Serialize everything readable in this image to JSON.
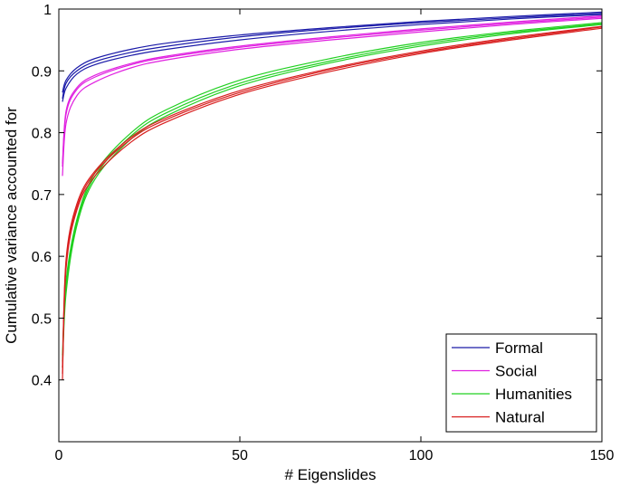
{
  "chart_data": {
    "type": "line",
    "xlabel": "# Eigenslides",
    "ylabel": "Cumulative variance accounted for",
    "xlim": [
      0,
      150
    ],
    "ylim": [
      0.3,
      1.0
    ],
    "xticks": [
      0,
      50,
      100,
      150
    ],
    "xtick_labels": [
      "0",
      "50",
      "100",
      "150"
    ],
    "yticks": [
      0.4,
      0.5,
      0.6,
      0.7,
      0.8,
      0.9,
      1.0
    ],
    "ytick_labels": [
      "0.4",
      "0.5",
      "0.6",
      "0.7",
      "0.8",
      "0.9",
      "1"
    ],
    "grid": false,
    "legend_position": "bottom-right",
    "x": [
      1,
      2,
      5,
      10,
      20,
      30,
      50,
      75,
      100,
      125,
      150
    ],
    "series": [
      {
        "name": "Formal",
        "color": "#1a1aa8",
        "values": [
          0.855,
          0.88,
          0.9,
          0.915,
          0.93,
          0.94,
          0.955,
          0.968,
          0.978,
          0.986,
          0.993
        ]
      },
      {
        "name": "",
        "color": "#1a1aa8",
        "values": [
          0.865,
          0.885,
          0.905,
          0.92,
          0.935,
          0.945,
          0.958,
          0.97,
          0.98,
          0.988,
          0.995
        ]
      },
      {
        "name": "",
        "color": "#1a1aa8",
        "values": [
          0.85,
          0.872,
          0.895,
          0.91,
          0.925,
          0.935,
          0.95,
          0.964,
          0.975,
          0.984,
          0.991
        ]
      },
      {
        "name": "Social",
        "color": "#e020e0",
        "values": [
          0.745,
          0.83,
          0.87,
          0.89,
          0.91,
          0.922,
          0.938,
          0.953,
          0.966,
          0.977,
          0.987
        ]
      },
      {
        "name": "",
        "color": "#e020e0",
        "values": [
          0.73,
          0.815,
          0.86,
          0.882,
          0.905,
          0.918,
          0.935,
          0.95,
          0.963,
          0.975,
          0.985
        ]
      },
      {
        "name": "",
        "color": "#e020e0",
        "values": [
          0.75,
          0.835,
          0.873,
          0.893,
          0.912,
          0.924,
          0.94,
          0.955,
          0.968,
          0.979,
          0.989
        ]
      },
      {
        "name": "Humanities",
        "color": "#20d020",
        "values": [
          0.44,
          0.56,
          0.66,
          0.735,
          0.8,
          0.838,
          0.885,
          0.92,
          0.946,
          0.964,
          0.978
        ]
      },
      {
        "name": "",
        "color": "#20d020",
        "values": [
          0.42,
          0.54,
          0.65,
          0.725,
          0.79,
          0.828,
          0.876,
          0.913,
          0.94,
          0.96,
          0.975
        ]
      },
      {
        "name": "",
        "color": "#20d020",
        "values": [
          0.43,
          0.55,
          0.655,
          0.73,
          0.795,
          0.833,
          0.88,
          0.916,
          0.943,
          0.962,
          0.976
        ]
      },
      {
        "name": "Natural",
        "color": "#d81e1e",
        "values": [
          0.41,
          0.59,
          0.68,
          0.735,
          0.79,
          0.822,
          0.865,
          0.902,
          0.93,
          0.952,
          0.971
        ]
      },
      {
        "name": "",
        "color": "#d81e1e",
        "values": [
          0.4,
          0.58,
          0.675,
          0.73,
          0.785,
          0.818,
          0.862,
          0.899,
          0.928,
          0.95,
          0.969
        ]
      },
      {
        "name": "",
        "color": "#d81e1e",
        "values": [
          0.42,
          0.595,
          0.685,
          0.738,
          0.793,
          0.825,
          0.868,
          0.904,
          0.932,
          0.954,
          0.972
        ]
      }
    ],
    "legend": [
      {
        "label": "Formal",
        "color": "#1a1aa8"
      },
      {
        "label": "Social",
        "color": "#e020e0"
      },
      {
        "label": "Humanities",
        "color": "#20d020"
      },
      {
        "label": "Natural",
        "color": "#d81e1e"
      }
    ]
  }
}
